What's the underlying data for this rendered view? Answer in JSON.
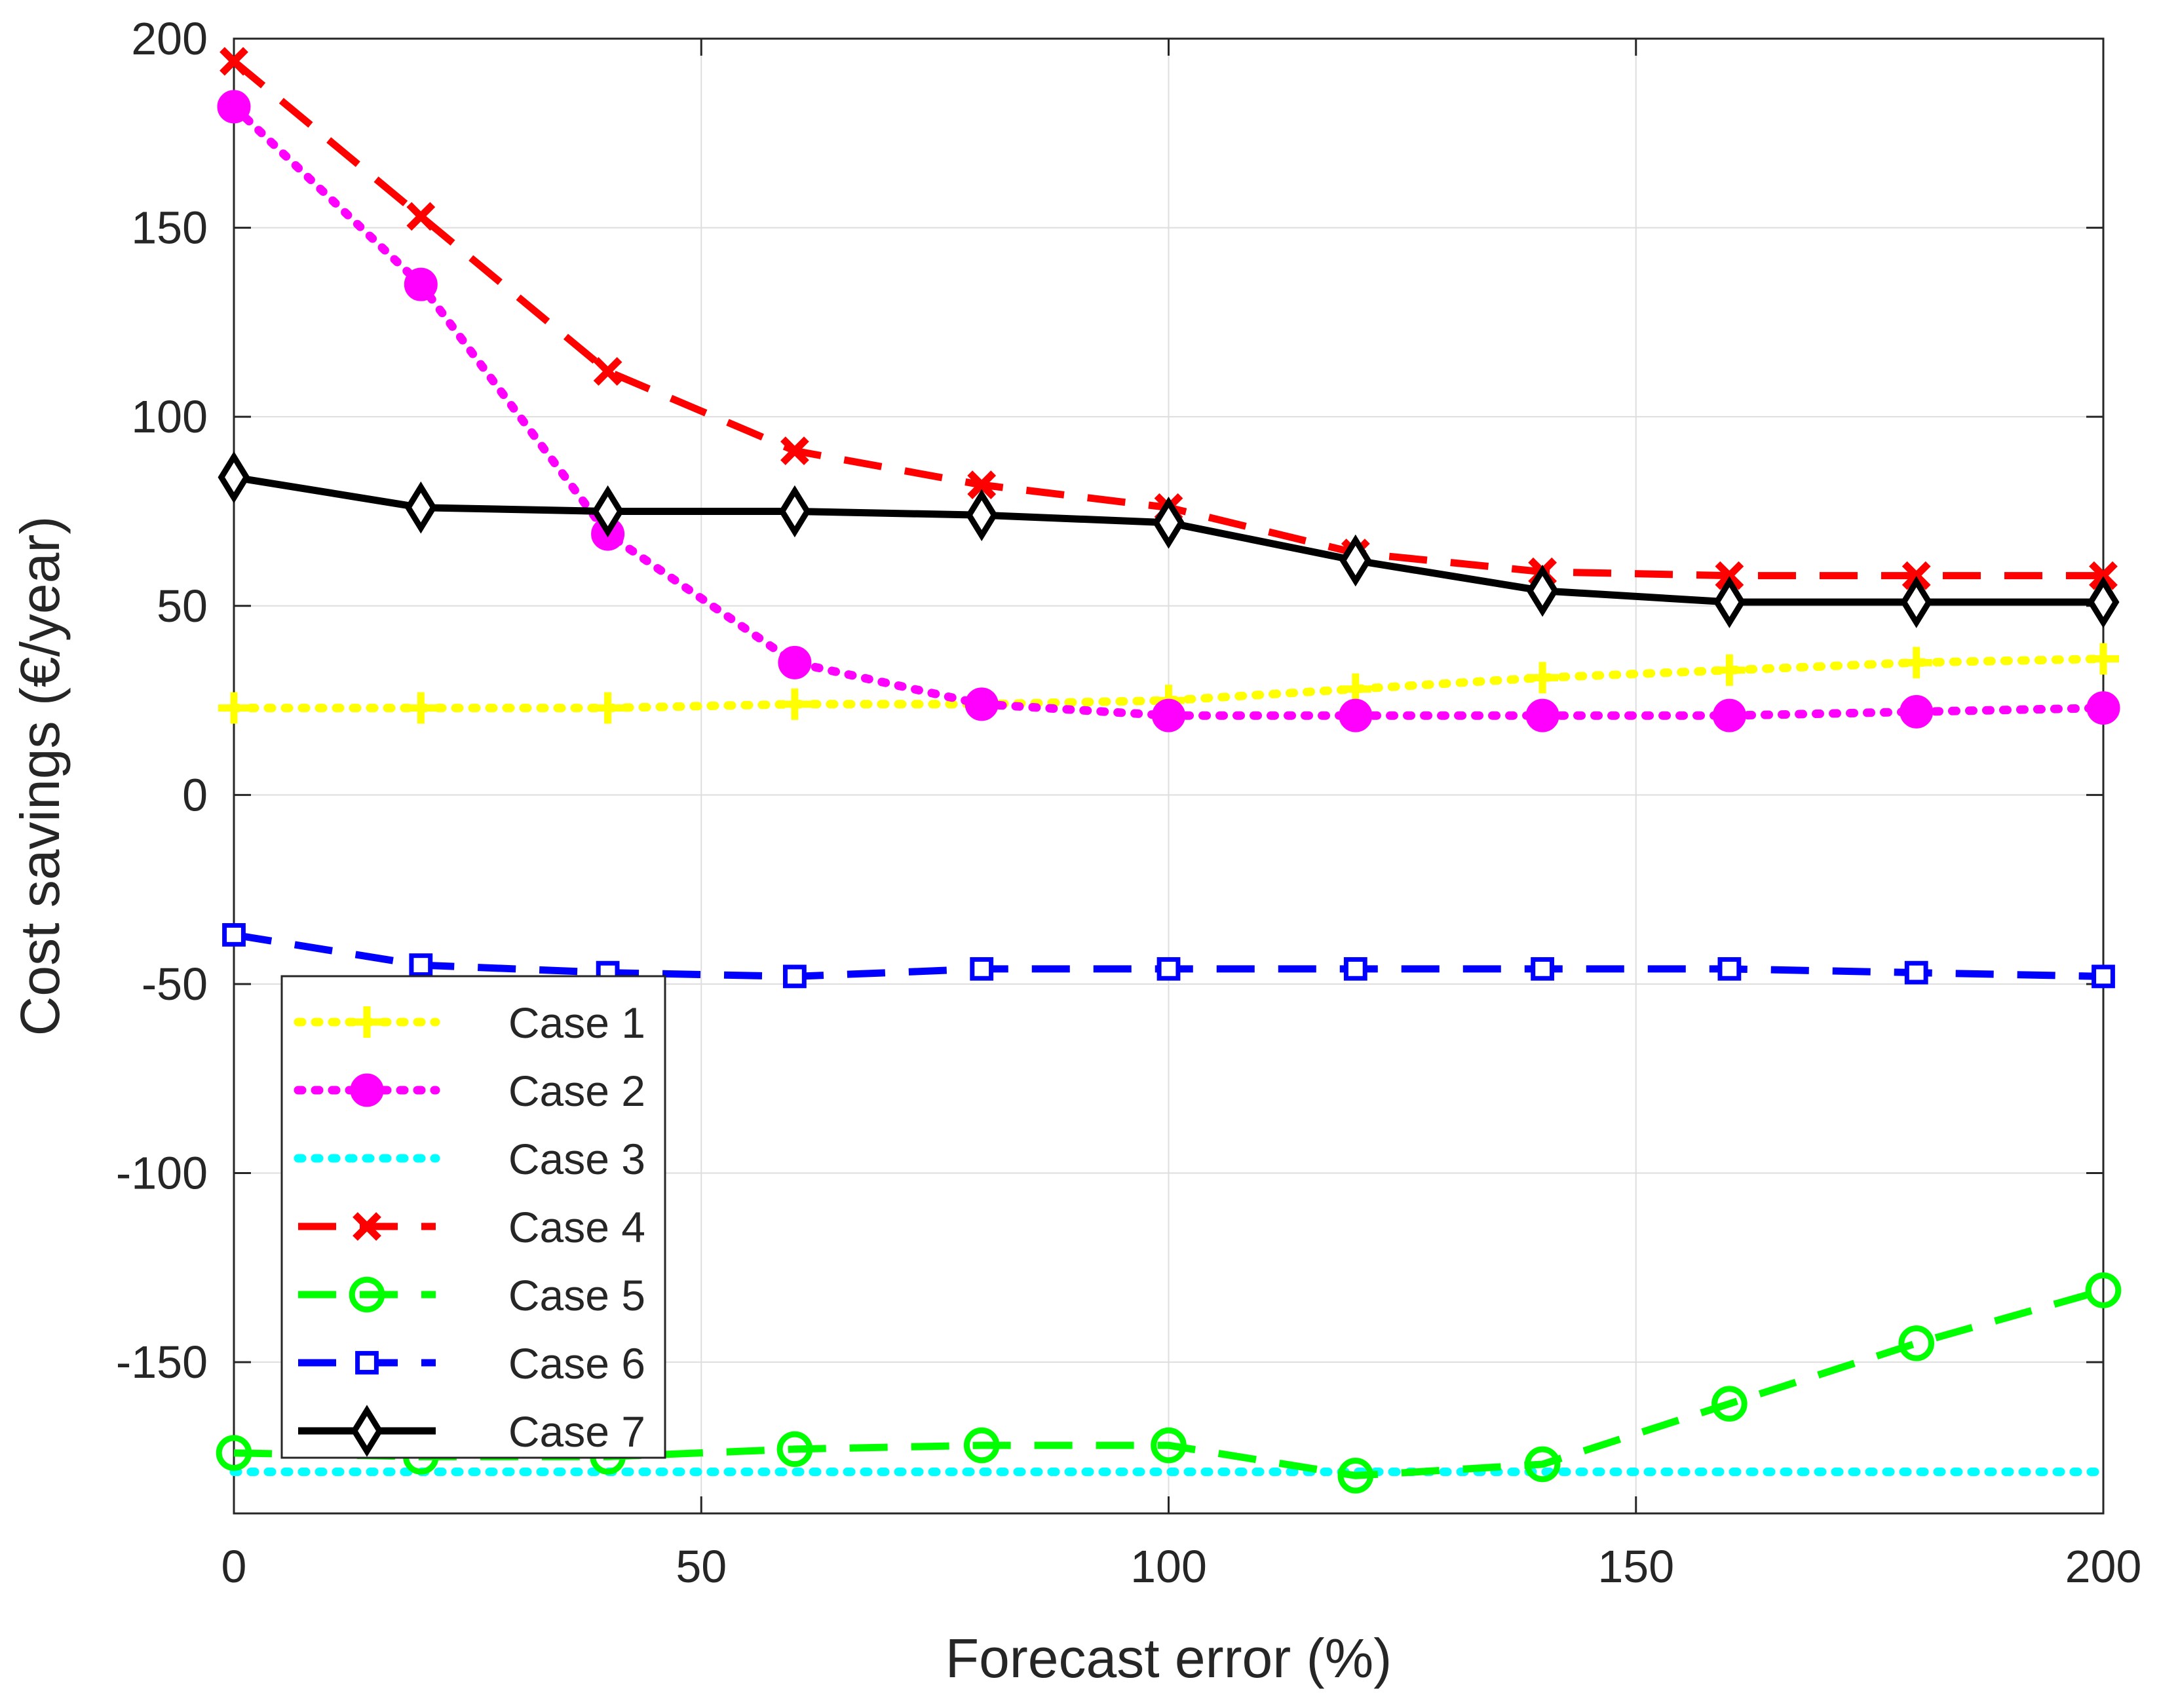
{
  "chart_data": {
    "type": "line",
    "title": "",
    "xlabel": "Forecast error (%)",
    "ylabel": "Cost savings (€/year)",
    "xlim": [
      0,
      200
    ],
    "ylim": [
      -190,
      200
    ],
    "grid": true,
    "xticks": [
      0,
      50,
      100,
      150,
      200
    ],
    "yticks": [
      200,
      150,
      100,
      50,
      0,
      -50,
      -100,
      -150
    ],
    "x": [
      0,
      20,
      40,
      60,
      80,
      100,
      120,
      140,
      160,
      180,
      200
    ],
    "legend_position": "bottom-left",
    "series": [
      {
        "name": "Case 1",
        "color": "#ffff00",
        "line": "dotted",
        "marker": "plus",
        "values": [
          23,
          23,
          23,
          24,
          24,
          25,
          28,
          31,
          33,
          35,
          36
        ]
      },
      {
        "name": "Case 2",
        "color": "#ff00ff",
        "line": "dotted",
        "marker": "filled-circle",
        "values": [
          182,
          135,
          69,
          35,
          24,
          21,
          21,
          21,
          21,
          22,
          23
        ]
      },
      {
        "name": "Case 3",
        "color": "#00ffff",
        "line": "dotted",
        "marker": "none",
        "values": [
          -179,
          -179,
          -179,
          -179,
          -179,
          -179,
          -179,
          -179,
          -179,
          -179,
          -179
        ]
      },
      {
        "name": "Case 4",
        "color": "#ff0000",
        "line": "dashed",
        "marker": "cross",
        "values": [
          194,
          153,
          112,
          91,
          82,
          76,
          64,
          59,
          58,
          58,
          58
        ]
      },
      {
        "name": "Case 5",
        "color": "#00ff00",
        "line": "dashed",
        "marker": "open-circle",
        "values": [
          -174,
          -175,
          -175,
          -173,
          -172,
          -172,
          -180,
          -177,
          -161,
          -145,
          -131
        ]
      },
      {
        "name": "Case 6",
        "color": "#0000ff",
        "line": "dashed",
        "marker": "open-square",
        "values": [
          -37,
          -45,
          -47,
          -48,
          -46,
          -46,
          -46,
          -46,
          -46,
          -47,
          -48
        ]
      },
      {
        "name": "Case 7",
        "color": "#000000",
        "line": "solid",
        "marker": "open-diamond",
        "values": [
          84,
          76,
          75,
          75,
          74,
          72,
          62,
          54,
          51,
          51,
          51
        ]
      }
    ]
  }
}
